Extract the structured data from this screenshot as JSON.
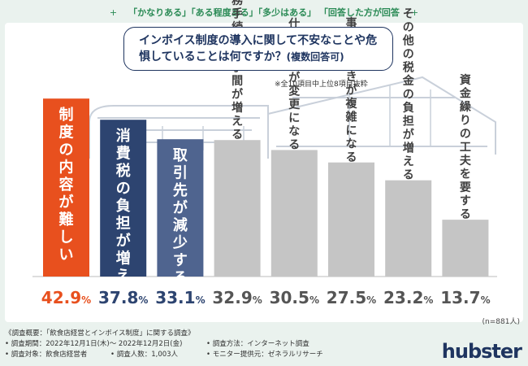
{
  "header_note": "「かなりある」「ある程度ある」「多少はある」 「回答した方が回答",
  "question": "インボイス制度の導入に関して不安なことや危惧していることは何ですか？",
  "question_suffix": "(複数回答可)",
  "subset_note": "※全10項目中上位8項目抜粋",
  "sample_note": "(n=881人)",
  "footer": {
    "title": "《調査概要：「飲食店経営とインボイス制度」に関する調査》",
    "period": "• 調査期間：2022年12月1日(木)～ 2022年12月2日(金)",
    "method": "• 調査方法：インターネット調査",
    "target": "• 調査対象：飲食店経営者",
    "count": "• 調査人数：1,003人",
    "monitor": "• モニター提供元：ゼネラルリサーチ"
  },
  "logo": "hubster",
  "colors": {
    "top": "#e8501e",
    "second": "#2d4470",
    "third": "#4f648f",
    "rest": "#c5c5c5",
    "label_grey": "#3f3f3f",
    "bubble": "#1f3560"
  },
  "chart_data": {
    "type": "bar",
    "title": "インボイス制度の導入に関して不安なことや危惧していることは何ですか？(複数回答可)",
    "categories": [
      "制度の内容が難しい",
      "消費税の負担が増える",
      "取引先が減少する",
      "事務手続きの手間が増える",
      "仕入れ先が変更になる",
      "事務手続きが複雑になる",
      "その他の税金の負担が増える",
      "資金繰りの工夫を要する"
    ],
    "values": [
      42.9,
      37.8,
      33.1,
      32.9,
      30.5,
      27.5,
      23.2,
      13.7
    ],
    "value_labels": [
      {
        "int": "42.",
        "dec": "9",
        "pct": "%"
      },
      {
        "int": "37.",
        "dec": "8",
        "pct": "%"
      },
      {
        "int": "33.",
        "dec": "1",
        "pct": "%"
      },
      {
        "int": "32.",
        "dec": "9",
        "pct": "%"
      },
      {
        "int": "30.",
        "dec": "5",
        "pct": "%"
      },
      {
        "int": "27.",
        "dec": "5",
        "pct": "%"
      },
      {
        "int": "23.",
        "dec": "2",
        "pct": "%"
      },
      {
        "int": "13.",
        "dec": "7",
        "pct": "%"
      }
    ],
    "unit": "%",
    "ylim": [
      0,
      45
    ]
  }
}
